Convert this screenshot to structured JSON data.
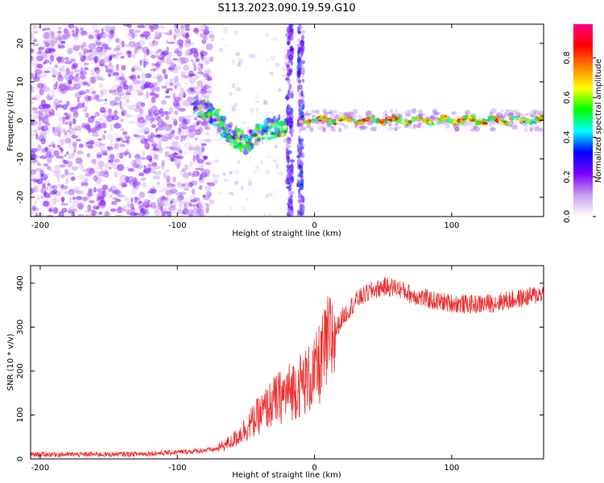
{
  "title": "S113.2023.090.19.59.G10",
  "chart_data": [
    {
      "type": "heatmap",
      "xlabel": "Height of straight line (km)",
      "ylabel": "Frequency (Hz)",
      "xlim": [
        -207,
        167
      ],
      "ylim": [
        -25,
        25
      ],
      "xticks": [
        -200,
        -100,
        0,
        100
      ],
      "yticks": [
        -20,
        -10,
        0,
        10,
        20
      ],
      "colorbar": {
        "label": "Normalized spectral amplitude",
        "range": [
          0,
          0.97
        ],
        "ticks": [
          0.0,
          0.2,
          0.4,
          0.6,
          0.8
        ],
        "tick_labels": [
          "0.0",
          "0.2",
          "0.4",
          "0.6",
          "0.8"
        ],
        "colors": [
          "#ffffff",
          "#c8a0f0",
          "#8000ff",
          "#0000ff",
          "#00ffff",
          "#00ff00",
          "#ffff00",
          "#ff8000",
          "#ff0000",
          "#ff0080"
        ]
      },
      "features": [
        {
          "name": "noise-region",
          "x_range": [
            -207,
            -75
          ],
          "freq_range": [
            -25,
            25
          ],
          "amplitude": 0.1
        },
        {
          "name": "sweep-segment",
          "x_points": [
            -88,
            -75,
            -60,
            -50,
            -40,
            -30,
            -20
          ],
          "freq_points": [
            4,
            2,
            -4,
            -6,
            -3,
            -2,
            -1
          ],
          "amplitude": 0.5
        },
        {
          "name": "vertical-band-1",
          "x": -18,
          "freq_range": [
            -25,
            25
          ],
          "amplitude": 0.25
        },
        {
          "name": "vertical-band-2",
          "x": -10,
          "freq_range": [
            -25,
            25
          ],
          "amplitude": 0.3
        },
        {
          "name": "carrier-line",
          "x_range": [
            -10,
            167
          ],
          "freq": 0,
          "amplitude": 0.9
        }
      ]
    },
    {
      "type": "line",
      "xlabel": "Height of straight line (km)",
      "ylabel": "SNR (10 * v/v)",
      "xlim": [
        -207,
        167
      ],
      "ylim": [
        0,
        440
      ],
      "xticks": [
        -200,
        -100,
        0,
        100
      ],
      "yticks": [
        0,
        100,
        200,
        300,
        400
      ],
      "series": [
        {
          "name": "SNR",
          "color": "#ee3030",
          "x": [
            -207,
            -180,
            -150,
            -120,
            -100,
            -85,
            -72,
            -60,
            -50,
            -40,
            -30,
            -20,
            -10,
            0,
            10,
            20,
            30,
            40,
            50,
            60,
            70,
            80,
            90,
            100,
            110,
            120,
            130,
            140,
            150,
            160,
            167
          ],
          "y": [
            10,
            10,
            10,
            12,
            15,
            18,
            22,
            40,
            70,
            100,
            130,
            150,
            170,
            190,
            260,
            320,
            360,
            380,
            392,
            390,
            375,
            365,
            358,
            355,
            352,
            352,
            355,
            360,
            365,
            372,
            378
          ]
        }
      ]
    }
  ]
}
